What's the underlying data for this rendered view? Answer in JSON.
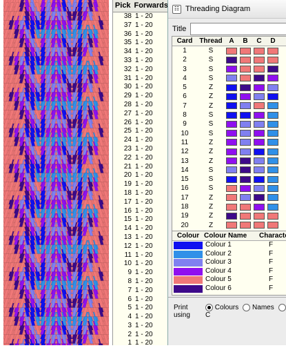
{
  "pattern": {
    "colours": [
      "#f07878",
      "#1010f0",
      "#8f10ef",
      "#8080f0",
      "#3d0a8a",
      "#3090e8"
    ]
  },
  "pick_list": {
    "headers": {
      "pick": "Pick",
      "forwards": "Forwards"
    },
    "rows": [
      {
        "n": "38",
        "r": "1 - 20"
      },
      {
        "n": "37",
        "r": "1 - 20"
      },
      {
        "n": "36",
        "r": "1 - 20"
      },
      {
        "n": "35",
        "r": "1 - 20"
      },
      {
        "n": "34",
        "r": "1 - 20"
      },
      {
        "n": "33",
        "r": "1 - 20"
      },
      {
        "n": "32",
        "r": "1 - 20"
      },
      {
        "n": "31",
        "r": "1 - 20"
      },
      {
        "n": "30",
        "r": "1 - 20"
      },
      {
        "n": "29",
        "r": "1 - 20"
      },
      {
        "n": "28",
        "r": "1 - 20"
      },
      {
        "n": "27",
        "r": "1 - 20"
      },
      {
        "n": "26",
        "r": "1 - 20"
      },
      {
        "n": "25",
        "r": "1 - 20"
      },
      {
        "n": "24",
        "r": "1 - 20"
      },
      {
        "n": "23",
        "r": "1 - 20"
      },
      {
        "n": "22",
        "r": "1 - 20"
      },
      {
        "n": "21",
        "r": "1 - 20"
      },
      {
        "n": "20",
        "r": "1 - 20"
      },
      {
        "n": "19",
        "r": "1 - 20"
      },
      {
        "n": "18",
        "r": "1 - 20"
      },
      {
        "n": "17",
        "r": "1 - 20"
      },
      {
        "n": "16",
        "r": "1 - 20"
      },
      {
        "n": "15",
        "r": "1 - 20"
      },
      {
        "n": "14",
        "r": "1 - 20"
      },
      {
        "n": "13",
        "r": "1 - 20"
      },
      {
        "n": "12",
        "r": "1 - 20"
      },
      {
        "n": "11",
        "r": "1 - 20"
      },
      {
        "n": "10",
        "r": "1 - 20"
      },
      {
        "n": "9",
        "r": "1 - 20"
      },
      {
        "n": "8",
        "r": "1 - 20"
      },
      {
        "n": "7",
        "r": "1 - 20"
      },
      {
        "n": "6",
        "r": "1 - 20"
      },
      {
        "n": "5",
        "r": "1 - 20"
      },
      {
        "n": "4",
        "r": "1 - 20"
      },
      {
        "n": "3",
        "r": "1 - 20"
      },
      {
        "n": "2",
        "r": "1 - 20"
      },
      {
        "n": "1",
        "r": "1 - 20"
      }
    ]
  },
  "threading": {
    "window_title": "Threading Diagram",
    "title_label": "Title",
    "title_value": "",
    "headers": {
      "card": "Card",
      "thread": "Thread",
      "a": "A",
      "b": "B",
      "c": "C",
      "d": "D"
    },
    "cards": [
      {
        "card": "1",
        "thread": "S",
        "holes": [
          "#f07878",
          "#f07878",
          "#f07878",
          "#f07878"
        ]
      },
      {
        "card": "2",
        "thread": "S",
        "holes": [
          "#3d0a8a",
          "#f07878",
          "#f07878",
          "#f07878"
        ]
      },
      {
        "card": "3",
        "thread": "S",
        "holes": [
          "#8f10ef",
          "#f07878",
          "#f07878",
          "#3d0a8a"
        ]
      },
      {
        "card": "4",
        "thread": "S",
        "holes": [
          "#8080f0",
          "#f07878",
          "#3d0a8a",
          "#8f10ef"
        ]
      },
      {
        "card": "5",
        "thread": "Z",
        "holes": [
          "#1010f0",
          "#3d0a8a",
          "#8f10ef",
          "#8080f0"
        ]
      },
      {
        "card": "6",
        "thread": "Z",
        "holes": [
          "#1010f0",
          "#8f10ef",
          "#8080f0",
          "#1010f0"
        ]
      },
      {
        "card": "7",
        "thread": "Z",
        "holes": [
          "#1010f0",
          "#8080f0",
          "#f07878",
          "#3090e8"
        ]
      },
      {
        "card": "8",
        "thread": "S",
        "holes": [
          "#1010f0",
          "#1010f0",
          "#8f10ef",
          "#3090e8"
        ]
      },
      {
        "card": "9",
        "thread": "S",
        "holes": [
          "#8f10ef",
          "#8080f0",
          "#8080f0",
          "#3090e8"
        ]
      },
      {
        "card": "10",
        "thread": "S",
        "holes": [
          "#8f10ef",
          "#8080f0",
          "#8f10ef",
          "#3090e8"
        ]
      },
      {
        "card": "11",
        "thread": "Z",
        "holes": [
          "#8f10ef",
          "#8080f0",
          "#8f10ef",
          "#3090e8"
        ]
      },
      {
        "card": "12",
        "thread": "Z",
        "holes": [
          "#8f10ef",
          "#8080f0",
          "#1010f0",
          "#3090e8"
        ]
      },
      {
        "card": "13",
        "thread": "Z",
        "holes": [
          "#8f10ef",
          "#3d0a8a",
          "#8080f0",
          "#3090e8"
        ]
      },
      {
        "card": "14",
        "thread": "S",
        "holes": [
          "#8080f0",
          "#3d0a8a",
          "#8080f0",
          "#3090e8"
        ]
      },
      {
        "card": "15",
        "thread": "S",
        "holes": [
          "#1010f0",
          "#3d0a8a",
          "#1010f0",
          "#3090e8"
        ]
      },
      {
        "card": "16",
        "thread": "S",
        "holes": [
          "#f07878",
          "#8f10ef",
          "#8080f0",
          "#3090e8"
        ]
      },
      {
        "card": "17",
        "thread": "Z",
        "holes": [
          "#f07878",
          "#8080f0",
          "#3d0a8a",
          "#3090e8"
        ]
      },
      {
        "card": "18",
        "thread": "Z",
        "holes": [
          "#f07878",
          "#f07878",
          "#8f10ef",
          "#3090e8"
        ]
      },
      {
        "card": "19",
        "thread": "Z",
        "holes": [
          "#3d0a8a",
          "#f07878",
          "#f07878",
          "#f07878"
        ]
      },
      {
        "card": "20",
        "thread": "Z",
        "holes": [
          "#f07878",
          "#f07878",
          "#f07878",
          "#f07878"
        ]
      }
    ],
    "colour_headers": {
      "colour": "Colour",
      "name": "Colour Name",
      "char": "Character"
    },
    "colours": [
      {
        "swatch": "#1010f0",
        "name": "Colour 1",
        "char": "F"
      },
      {
        "swatch": "#3090e8",
        "name": "Colour 2",
        "char": "F"
      },
      {
        "swatch": "#8080f0",
        "name": "Colour 3",
        "char": "F"
      },
      {
        "swatch": "#8f10ef",
        "name": "Colour 4",
        "char": "F"
      },
      {
        "swatch": "#f07878",
        "name": "Colour 5",
        "char": "F"
      },
      {
        "swatch": "#3d0a8a",
        "name": "Colour 6",
        "char": "F"
      }
    ],
    "print_label": "Print using",
    "print_options": [
      {
        "label": "Colours",
        "selected": true
      },
      {
        "label": "Names",
        "selected": false
      },
      {
        "label": "C",
        "selected": false
      }
    ]
  }
}
